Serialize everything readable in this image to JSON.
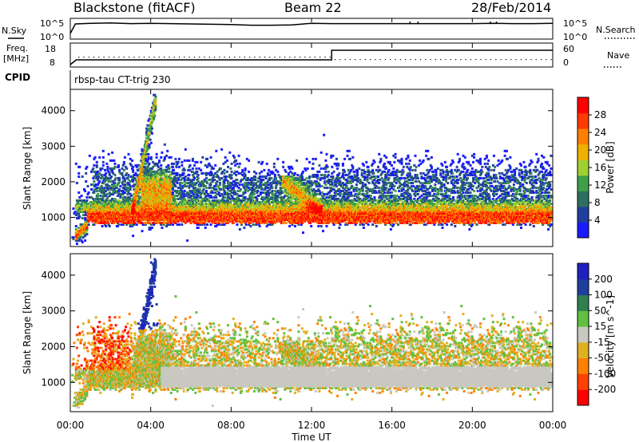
{
  "header": {
    "title": "Blackstone (fitACF)",
    "beam": "Beam 22",
    "date": "28/Feb/2014"
  },
  "panel_labels": {
    "nsky": "N.Sky",
    "nsky_range": [
      "10^5",
      "10^0"
    ],
    "nsearch": "N.Search",
    "nsearch_range": [
      "10^5",
      "10^0"
    ],
    "freq": "Freq.",
    "freq_unit": "[MHz]",
    "freq_range": [
      "18",
      "8"
    ],
    "nave": "Nave",
    "nave_range": [
      "60",
      "0"
    ],
    "cpid": "CPID",
    "cpid_value": "rbsp-tau CT-trig 230"
  },
  "colors": {
    "power": [
      "#1a1aff",
      "#1f3f9f",
      "#2d7060",
      "#3fa04a",
      "#a0d030",
      "#f0b000",
      "#ff8000",
      "#ff3a00",
      "#ff0000"
    ],
    "velocity": [
      "#ff0000",
      "#ff4000",
      "#ff8000",
      "#e0b020",
      "#c8c8c0",
      "#60c040",
      "#2f7f4f",
      "#1f3f9f",
      "#2020c0"
    ]
  },
  "chart_data": [
    {
      "type": "line",
      "name": "N.Sky",
      "x": [
        0,
        0.25,
        1,
        2,
        3,
        4,
        5,
        6,
        7,
        8,
        9,
        10,
        11,
        12,
        13,
        14,
        15,
        16,
        17,
        18,
        19,
        20,
        21,
        22,
        23,
        24
      ],
      "y": [
        1,
        4,
        4.2,
        4.3,
        4.1,
        4.2,
        4.1,
        4.0,
        3.9,
        3.8,
        3.6,
        3.6,
        3.7,
        4.2,
        4.1,
        4.1,
        4.1,
        4.1,
        4.1,
        4.1,
        4.1,
        4.1,
        4.2,
        4.1,
        4.1,
        4.2
      ],
      "ylim": [
        0,
        5
      ],
      "scale": "log10"
    },
    {
      "type": "line",
      "name": "Freq",
      "x": [
        0,
        0.3,
        13.0,
        13.0,
        24
      ],
      "y": [
        8,
        10.5,
        10.5,
        15.5,
        15.5
      ],
      "ylim": [
        8,
        18
      ],
      "ylabel": "Freq. [MHz]"
    },
    {
      "type": "heatmap",
      "name": "Power",
      "xlabel": "Time UT",
      "ylabel": "Slant Range [km]",
      "xlim": [
        0,
        24
      ],
      "ylim": [
        180,
        4600
      ],
      "x_ticks": [
        "00:00",
        "04:00",
        "08:00",
        "12:00",
        "16:00",
        "20:00",
        "00:00"
      ],
      "y_ticks": [
        1000,
        2000,
        3000,
        4000
      ],
      "colorbar": {
        "label": "Power [dB]",
        "ticks": [
          4,
          8,
          12,
          16,
          20,
          24,
          28
        ],
        "range": [
          0,
          32
        ]
      }
    },
    {
      "type": "heatmap",
      "name": "Velocity",
      "xlabel": "Time UT",
      "ylabel": "Slant Range [km]",
      "xlim": [
        0,
        24
      ],
      "ylim": [
        180,
        4600
      ],
      "x_ticks": [
        "00:00",
        "04:00",
        "08:00",
        "12:00",
        "16:00",
        "20:00",
        "00:00"
      ],
      "y_ticks": [
        1000,
        2000,
        3000,
        4000
      ],
      "colorbar": {
        "label": "Velocity [m s^-1]",
        "ticks": [
          "-200",
          "-100",
          "-50",
          "-15",
          "15",
          "50",
          "100",
          "200"
        ]
      }
    }
  ]
}
